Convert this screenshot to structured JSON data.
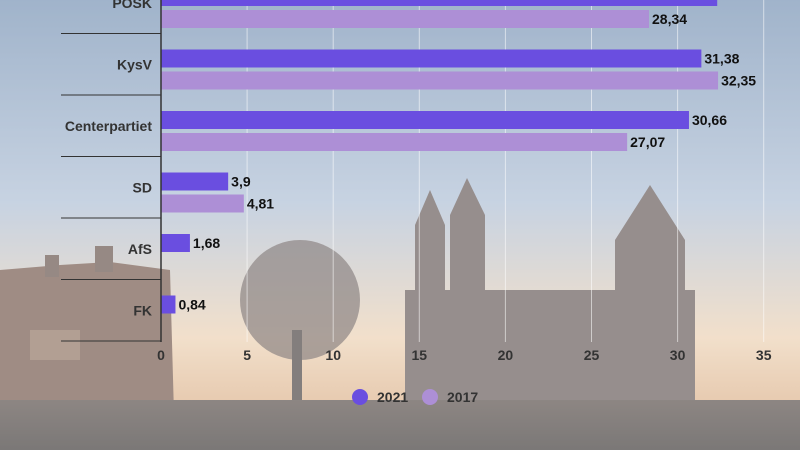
{
  "colors": {
    "series_2021": "#6a4ee0",
    "series_2017": "#ad8fd6",
    "background_overlay": "#ffffff",
    "axis": "#333333"
  },
  "chart_data": {
    "type": "bar",
    "orientation": "horizontal",
    "categories": [
      "POSK",
      "KysV",
      "Centerpartiet",
      "SD",
      "AfS",
      "FK"
    ],
    "series": [
      {
        "name": "2021",
        "values": [
          32.3,
          31.38,
          30.66,
          3.9,
          1.68,
          0.84
        ]
      },
      {
        "name": "2017",
        "values": [
          28.34,
          32.35,
          27.07,
          4.81,
          null,
          null
        ]
      }
    ],
    "value_labels": {
      "2021": [
        null,
        "31,38",
        "30,66",
        "3,9",
        "1,68",
        "0,84"
      ],
      "2017": [
        "28,34",
        "32,35",
        "27,07",
        "4,81",
        null,
        null
      ]
    },
    "xticks": [
      "0",
      "5",
      "10",
      "15",
      "20",
      "25",
      "30",
      "35"
    ],
    "xlim": [
      0,
      35
    ],
    "grid": true,
    "legend_position": "bottom",
    "title": "",
    "xlabel": "",
    "ylabel": ""
  }
}
